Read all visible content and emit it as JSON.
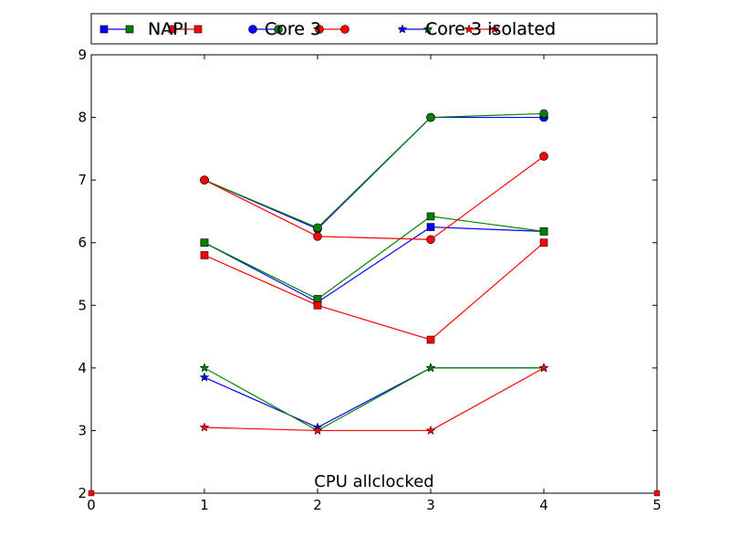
{
  "chart_data": {
    "type": "line",
    "xlim": [
      0,
      5
    ],
    "ylim": [
      2,
      9
    ],
    "x_ticks": [
      "0",
      "1",
      "2",
      "3",
      "4",
      "5"
    ],
    "y_ticks": [
      "2",
      "3",
      "4",
      "5",
      "6",
      "7",
      "8",
      "9"
    ],
    "grid": false,
    "legend_placement": "top",
    "annotation": "CPU allclocked",
    "legend_texts": [
      "NAPI",
      "NAPI",
      "Core 3",
      "Core 3",
      "Core 3 isolated",
      "Core 3 isolated"
    ],
    "series": [
      {
        "color": "#0000ff",
        "marker": "square",
        "x": [
          1,
          2,
          3,
          4
        ],
        "y": [
          6.0,
          5.05,
          6.25,
          6.18
        ]
      },
      {
        "color": "#008000",
        "marker": "square",
        "x": [
          1,
          2,
          3,
          4
        ],
        "y": [
          6.0,
          5.1,
          6.42,
          6.18
        ]
      },
      {
        "color": "#ff0000",
        "marker": "square",
        "x": [
          1,
          2,
          3,
          4
        ],
        "y": [
          5.8,
          5.0,
          4.45,
          6.0
        ]
      },
      {
        "color": "#0000ff",
        "marker": "circle",
        "x": [
          1,
          2,
          3,
          4
        ],
        "y": [
          7.0,
          6.22,
          8.0,
          8.0
        ]
      },
      {
        "color": "#008000",
        "marker": "circle",
        "x": [
          1,
          2,
          3,
          4
        ],
        "y": [
          7.0,
          6.24,
          8.0,
          8.06
        ]
      },
      {
        "color": "#ff0000",
        "marker": "circle",
        "x": [
          1,
          2,
          3,
          4
        ],
        "y": [
          7.0,
          6.1,
          6.05,
          7.38
        ]
      },
      {
        "color": "#0000ff",
        "marker": "star",
        "x": [
          1,
          2,
          3,
          4
        ],
        "y": [
          3.85,
          3.05,
          4.0,
          4.0
        ]
      },
      {
        "color": "#008000",
        "marker": "star",
        "x": [
          1,
          2,
          3,
          4
        ],
        "y": [
          4.0,
          3.0,
          4.0,
          4.0
        ]
      },
      {
        "color": "#ff0000",
        "marker": "star",
        "x": [
          1,
          2,
          3,
          4
        ],
        "y": [
          3.05,
          3.0,
          3.0,
          4.0
        ]
      }
    ]
  }
}
